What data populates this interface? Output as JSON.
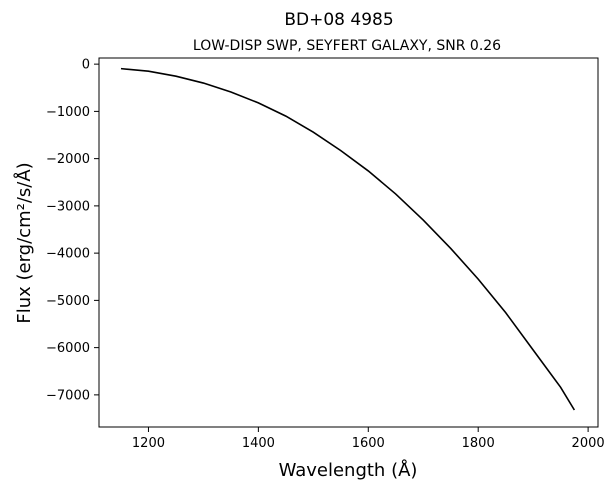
{
  "chart_data": {
    "type": "line",
    "title": "BD+08  4985",
    "subtitle": "LOW-DISP SWP, SEYFERT GALAXY, SNR 0.26",
    "xlabel": "Wavelength (Å)",
    "ylabel": "Flux (erg/cm²/s/Å)",
    "xlim": [
      1110,
      2018
    ],
    "ylim": [
      -7680,
      130
    ],
    "xticks": [
      1200,
      1400,
      1600,
      1800,
      2000
    ],
    "yticks": [
      0,
      -1000,
      -2000,
      -3000,
      -4000,
      -5000,
      -6000,
      -7000
    ],
    "xtick_labels": [
      "1200",
      "1400",
      "1600",
      "1800",
      "2000"
    ],
    "ytick_labels": [
      "0",
      "−1000",
      "−2000",
      "−3000",
      "−4000",
      "−5000",
      "−6000",
      "−7000"
    ],
    "grid": false,
    "legend": "none",
    "line_color": "#000000",
    "series": [
      {
        "x": [
          1150,
          1200,
          1250,
          1300,
          1350,
          1400,
          1450,
          1500,
          1550,
          1600,
          1650,
          1700,
          1750,
          1800,
          1850,
          1900,
          1950,
          1975
        ],
        "values": [
          -95,
          -150,
          -255,
          -400,
          -590,
          -820,
          -1100,
          -1440,
          -1830,
          -2260,
          -2750,
          -3300,
          -3900,
          -4550,
          -5260,
          -6050,
          -6840,
          -7320
        ]
      }
    ]
  }
}
